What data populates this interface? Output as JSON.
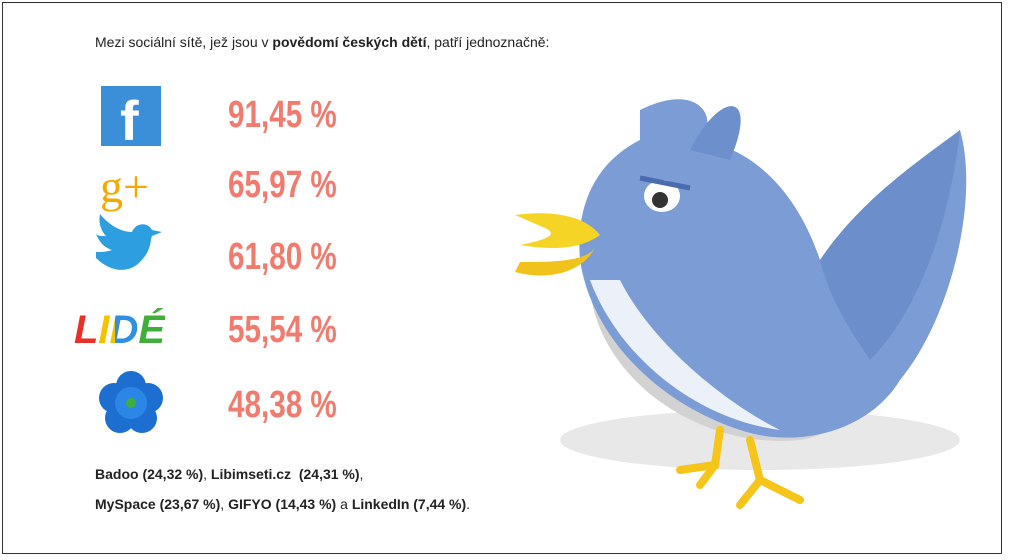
{
  "intro": [
    {
      "text": "Mezi sociální sítě, jež jsou v ",
      "bold": false
    },
    {
      "text": "povědomí českých dětí",
      "bold": true
    },
    {
      "text": ", patří jednoznačně:",
      "bold": false
    }
  ],
  "items": [
    {
      "logo": "f",
      "label": "91,45 %"
    },
    {
      "logo": "g+",
      "label": "65,97 %"
    },
    {
      "label": "61,80 %"
    },
    {
      "logo": "LIDÉ",
      "label": "55,54 %"
    },
    {
      "label": "48,38 %"
    }
  ],
  "footer": [
    [
      {
        "text": "Badoo (24,32 %)",
        "bold": true
      },
      {
        "text": ", ",
        "bold": false
      },
      {
        "text": "Libimseti.cz  (24,31 %)",
        "bold": true
      },
      {
        "text": ",",
        "bold": false
      }
    ],
    [
      {
        "text": "MySpace (23,67 %)",
        "bold": true
      },
      {
        "text": ", ",
        "bold": false
      },
      {
        "text": "GIFYO (14,43 %)",
        "bold": true
      },
      {
        "text": " a ",
        "bold": false
      },
      {
        "text": "LinkedIn (7,44 %)",
        "bold": true
      },
      {
        "text": ".",
        "bold": false
      }
    ]
  ]
}
